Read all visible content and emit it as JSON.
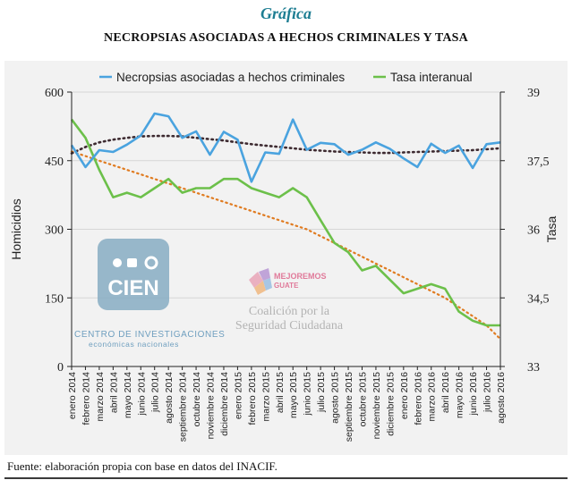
{
  "header": {
    "supertitle": "Gráfica",
    "title": "NECROPSIAS ASOCIADAS A HECHOS CRIMINALES  Y TASA"
  },
  "source": "Fuente: elaboración propia con base en datos del INACIF.",
  "watermarks": {
    "cien_logo_text": "CIEN",
    "cien_name_line1": "CENTRO DE INVESTIGACIONES",
    "cien_name_line2": "económicas nacionales",
    "mejoremos_line1": "MEJOREMOS",
    "mejoremos_line2": "GUATE",
    "coalicion_line1": "Coalición por la",
    "coalicion_line2": "Seguridad Ciudadana"
  },
  "colors": {
    "necropsias": "#4aa3df",
    "tasa": "#6cc04a",
    "trend_necropsias": "#3d2a30",
    "trend_tasa": "#e07b20",
    "grid": "#d6d6d6",
    "cien_logo": "#8aaec4"
  },
  "chart_data": {
    "type": "line",
    "title": "NECROPSIAS ASOCIADAS A HECHOS CRIMINALES  Y TASA",
    "ylabel": "Homicidios",
    "y2label": "Tasa",
    "ylim": [
      0,
      600
    ],
    "y2lim": [
      33,
      39
    ],
    "yticks": [
      "0",
      "150",
      "300",
      "450",
      "600"
    ],
    "y2ticks": [
      "33",
      "34,5",
      "36",
      "37,5",
      "39"
    ],
    "grid": true,
    "legend_position": "top",
    "categories": [
      "enero 2014",
      "febrero 2014",
      "marzo 2014",
      "abril 2014",
      "mayo 2014",
      "junio 2014",
      "julio 2014",
      "agosto 2014",
      "septiembre 2014",
      "octubre 2014",
      "noviembre 2014",
      "diciembre 2014",
      "enero 2015",
      "febrero 2015",
      "marzo 2015",
      "abril 2015",
      "mayo 2015",
      "junio 2015",
      "julio 2015",
      "agosto 2015",
      "septiembre 2015",
      "octubre 2015",
      "noviembre 2015",
      "diciembre 2015",
      "enero 2016",
      "febrero 2016",
      "marzo 2016",
      "abril 2016",
      "mayo 2016",
      "junio 2016",
      "julio 2016",
      "agosto 2016"
    ],
    "series": [
      {
        "name": "Necropsias asociadas a hechos criminales",
        "axis": "left",
        "color": "#4aa3df",
        "values": [
          484,
          436,
          473,
          469,
          485,
          505,
          553,
          547,
          500,
          514,
          463,
          513,
          496,
          404,
          468,
          465,
          540,
          474,
          489,
          486,
          463,
          474,
          490,
          476,
          455,
          436,
          487,
          467,
          483,
          434,
          486,
          490
        ]
      },
      {
        "name": "Tasa interanual",
        "axis": "right",
        "color": "#6cc04a",
        "values": [
          38.4,
          38.0,
          37.3,
          36.7,
          36.8,
          36.7,
          36.9,
          37.1,
          36.8,
          36.9,
          36.9,
          37.1,
          37.1,
          36.9,
          36.8,
          36.7,
          36.9,
          36.7,
          36.2,
          35.7,
          35.5,
          35.1,
          35.2,
          34.9,
          34.6,
          34.7,
          34.8,
          34.7,
          34.2,
          34.0,
          33.9,
          33.9
        ]
      }
    ],
    "trendlines": [
      {
        "series": "Necropsias asociadas a hechos criminales",
        "style": "dotted",
        "color": "#3d2a30",
        "values": [
          466,
          480,
          490,
          496,
          500,
          503,
          504,
          504,
          503,
          500,
          497,
          494,
          490,
          486,
          483,
          480,
          477,
          474,
          472,
          470,
          469,
          468,
          467,
          467,
          468,
          469,
          470,
          471,
          472,
          473,
          475,
          477
        ]
      },
      {
        "series": "Tasa interanual",
        "style": "dotted",
        "color": "#e07b20",
        "values": [
          37.7,
          37.6,
          37.5,
          37.4,
          37.3,
          37.2,
          37.1,
          37.0,
          36.9,
          36.8,
          36.7,
          36.6,
          36.5,
          36.4,
          36.3,
          36.2,
          36.1,
          36.0,
          35.85,
          35.7,
          35.55,
          35.4,
          35.25,
          35.1,
          34.95,
          34.8,
          34.65,
          34.5,
          34.3,
          34.1,
          33.9,
          33.6
        ]
      }
    ]
  }
}
